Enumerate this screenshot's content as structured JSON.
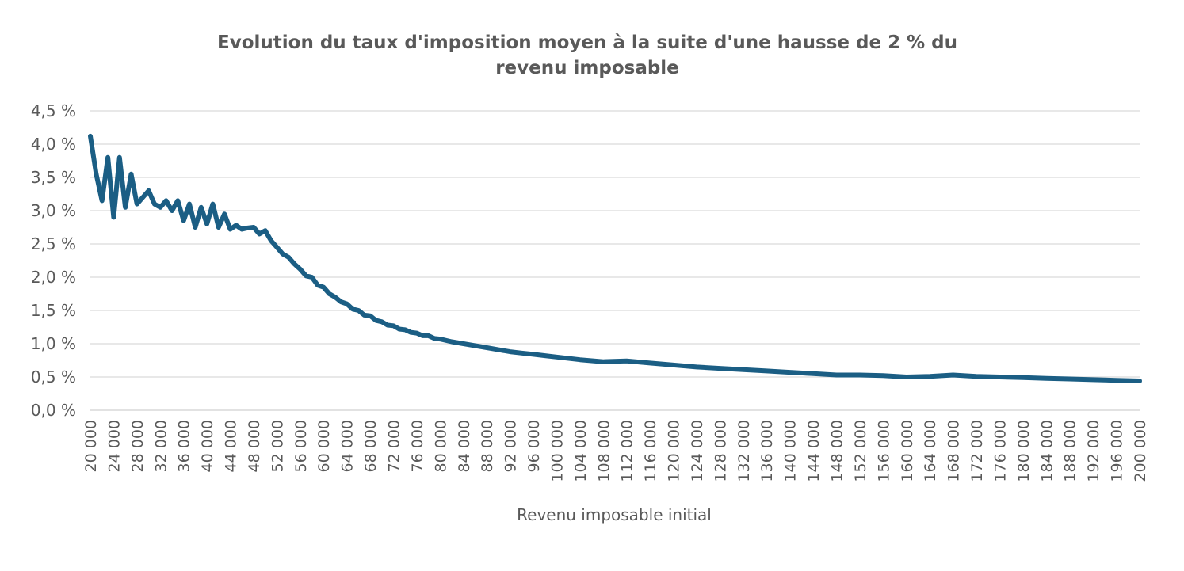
{
  "chart_data": {
    "type": "line",
    "title_lines": [
      "Evolution du taux d'imposition moyen à la suite d'une hausse de 2 % du",
      "revenu imposable"
    ],
    "xlabel": "Revenu imposable initial",
    "ylabel": "",
    "xlim": [
      20000,
      200000
    ],
    "ylim": [
      0,
      4.5
    ],
    "grid": true,
    "y_ticks": [
      "0,0 %",
      "0,5 %",
      "1,0 %",
      "1,5 %",
      "2,0 %",
      "2,5 %",
      "3,0 %",
      "3,5 %",
      "4,0 %",
      "4,5 %"
    ],
    "x_ticks": [
      "20 000",
      "24 000",
      "28 000",
      "32 000",
      "36 000",
      "40 000",
      "44 000",
      "48 000",
      "52 000",
      "56 000",
      "60 000",
      "64 000",
      "68 000",
      "72 000",
      "76 000",
      "80 000",
      "84 000",
      "88 000",
      "92 000",
      "96 000",
      "100 000",
      "104 000",
      "108 000",
      "112 000",
      "116 000",
      "120 000",
      "124 000",
      "128 000",
      "132 000",
      "136 000",
      "140 000",
      "144 000",
      "148 000",
      "152 000",
      "156 000",
      "160 000",
      "164 000",
      "168 000",
      "172 000",
      "176 000",
      "180 000",
      "184 000",
      "188 000",
      "192 000",
      "196 000",
      "200 000"
    ],
    "colors": {
      "line": "#1b5e84",
      "grid": "#d9d9d9",
      "text": "#595959"
    },
    "series": [
      {
        "name": "",
        "x": [
          20000,
          21000,
          22000,
          23000,
          24000,
          25000,
          26000,
          27000,
          28000,
          29000,
          30000,
          31000,
          32000,
          33000,
          34000,
          35000,
          36000,
          37000,
          38000,
          39000,
          40000,
          41000,
          42000,
          43000,
          44000,
          45000,
          46000,
          47000,
          48000,
          49000,
          50000,
          51000,
          52000,
          53000,
          54000,
          55000,
          56000,
          57000,
          58000,
          59000,
          60000,
          61000,
          62000,
          63000,
          64000,
          65000,
          66000,
          67000,
          68000,
          69000,
          70000,
          71000,
          72000,
          73000,
          74000,
          75000,
          76000,
          77000,
          78000,
          79000,
          80000,
          82000,
          84000,
          86000,
          88000,
          90000,
          92000,
          94000,
          96000,
          98000,
          100000,
          104000,
          108000,
          112000,
          116000,
          120000,
          124000,
          128000,
          132000,
          136000,
          140000,
          144000,
          148000,
          152000,
          156000,
          160000,
          164000,
          168000,
          172000,
          176000,
          180000,
          184000,
          188000,
          192000,
          196000,
          200000
        ],
        "values": [
          4.12,
          3.55,
          3.15,
          3.8,
          2.9,
          3.8,
          3.05,
          3.55,
          3.1,
          3.2,
          3.3,
          3.1,
          3.05,
          3.15,
          3.0,
          3.15,
          2.85,
          3.1,
          2.75,
          3.05,
          2.8,
          3.1,
          2.75,
          2.95,
          2.72,
          2.78,
          2.72,
          2.74,
          2.75,
          2.65,
          2.7,
          2.55,
          2.45,
          2.35,
          2.3,
          2.2,
          2.12,
          2.02,
          2.0,
          1.88,
          1.85,
          1.75,
          1.7,
          1.63,
          1.6,
          1.52,
          1.5,
          1.43,
          1.42,
          1.35,
          1.33,
          1.28,
          1.27,
          1.22,
          1.21,
          1.17,
          1.16,
          1.12,
          1.12,
          1.08,
          1.07,
          1.03,
          1.0,
          0.97,
          0.94,
          0.91,
          0.88,
          0.86,
          0.84,
          0.82,
          0.8,
          0.76,
          0.73,
          0.74,
          0.71,
          0.68,
          0.65,
          0.63,
          0.61,
          0.59,
          0.57,
          0.55,
          0.53,
          0.53,
          0.52,
          0.5,
          0.51,
          0.53,
          0.51,
          0.5,
          0.49,
          0.48,
          0.47,
          0.46,
          0.45,
          0.44
        ]
      }
    ]
  }
}
